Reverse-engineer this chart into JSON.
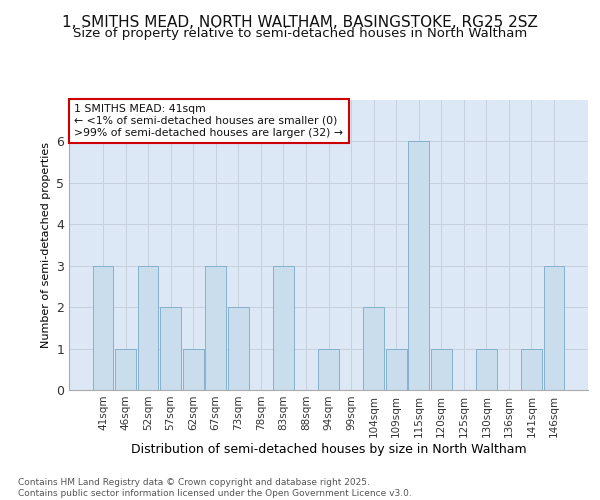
{
  "title1": "1, SMITHS MEAD, NORTH WALTHAM, BASINGSTOKE, RG25 2SZ",
  "title2": "Size of property relative to semi-detached houses in North Waltham",
  "xlabel": "Distribution of semi-detached houses by size in North Waltham",
  "ylabel": "Number of semi-detached properties",
  "categories": [
    "41sqm",
    "46sqm",
    "52sqm",
    "57sqm",
    "62sqm",
    "67sqm",
    "73sqm",
    "78sqm",
    "83sqm",
    "88sqm",
    "94sqm",
    "99sqm",
    "104sqm",
    "109sqm",
    "115sqm",
    "120sqm",
    "125sqm",
    "130sqm",
    "136sqm",
    "141sqm",
    "146sqm"
  ],
  "values": [
    3,
    1,
    3,
    2,
    1,
    3,
    2,
    0,
    3,
    0,
    1,
    0,
    2,
    1,
    6,
    1,
    0,
    1,
    0,
    1,
    3
  ],
  "bar_color": "#c9dded",
  "bar_edge_color": "#7aaac8",
  "annotation_text": "1 SMITHS MEAD: 41sqm\n← <1% of semi-detached houses are smaller (0)\n>99% of semi-detached houses are larger (32) →",
  "ylim": [
    0,
    7
  ],
  "yticks": [
    0,
    1,
    2,
    3,
    4,
    5,
    6
  ],
  "grid_color": "#c8d0dc",
  "bg_color": "#dce8f5",
  "fig_bg_color": "#ffffff",
  "footer": "Contains HM Land Registry data © Crown copyright and database right 2025.\nContains public sector information licensed under the Open Government Licence v3.0.",
  "title1_fontsize": 11,
  "title2_fontsize": 9.5,
  "xlabel_fontsize": 9,
  "ylabel_fontsize": 8,
  "annotation_box_color": "#ffffff",
  "annotation_edge_color": "#cc0000"
}
